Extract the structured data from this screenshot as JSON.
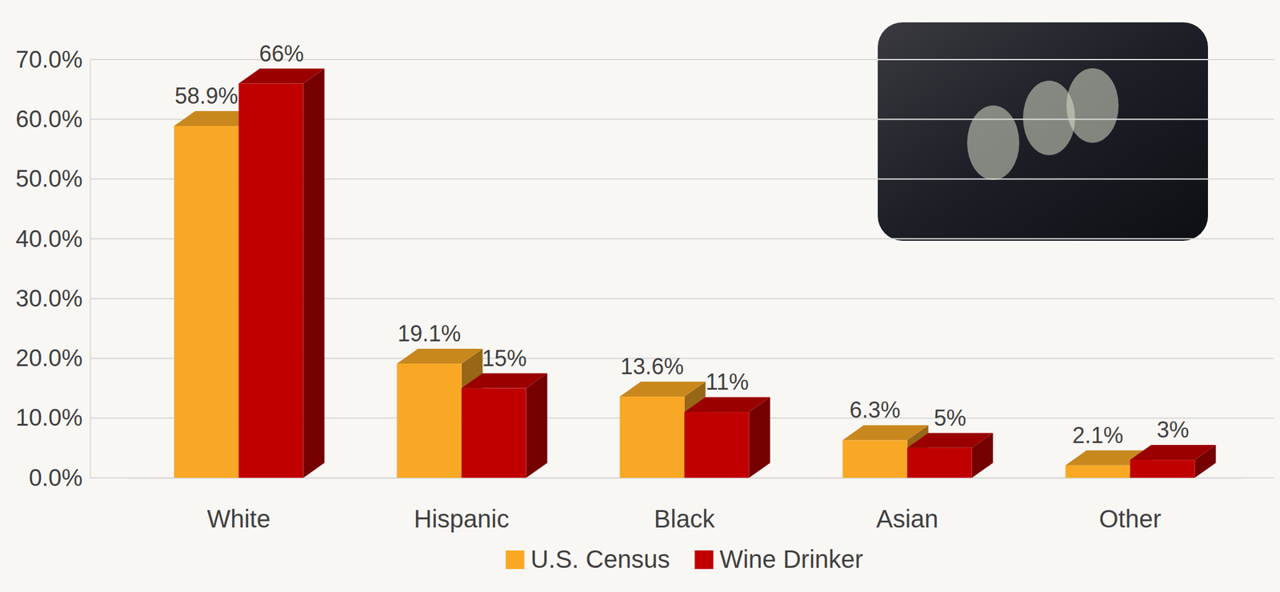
{
  "chart_data": {
    "type": "bar",
    "categories": [
      "White",
      "Hispanic",
      "Black",
      "Asian",
      "Other"
    ],
    "series": [
      {
        "name": "U.S. Census",
        "color": "#f9a825",
        "values": [
          58.9,
          19.1,
          13.6,
          6.3,
          2.1
        ],
        "value_labels": [
          "58.9%",
          "19.1%",
          "13.6%",
          "6.3%",
          "2.1%"
        ]
      },
      {
        "name": "Wine Drinker",
        "color": "#c00000",
        "values": [
          66,
          15,
          11,
          5,
          3
        ],
        "value_labels": [
          "66%",
          "15%",
          "11%",
          "5%",
          "3%"
        ]
      }
    ],
    "ylim": [
      0,
      70
    ],
    "yticks": [
      {
        "value": 0,
        "label": "0.0%"
      },
      {
        "value": 10,
        "label": "10.0%"
      },
      {
        "value": 20,
        "label": "20.0%"
      },
      {
        "value": 30,
        "label": "30.0%"
      },
      {
        "value": 40,
        "label": "40.0%"
      },
      {
        "value": 50,
        "label": "50.0%"
      },
      {
        "value": 60,
        "label": "60.0%"
      },
      {
        "value": 70,
        "label": "70.0%"
      }
    ],
    "grid": true,
    "data_labels": true,
    "legend": "bottom"
  }
}
